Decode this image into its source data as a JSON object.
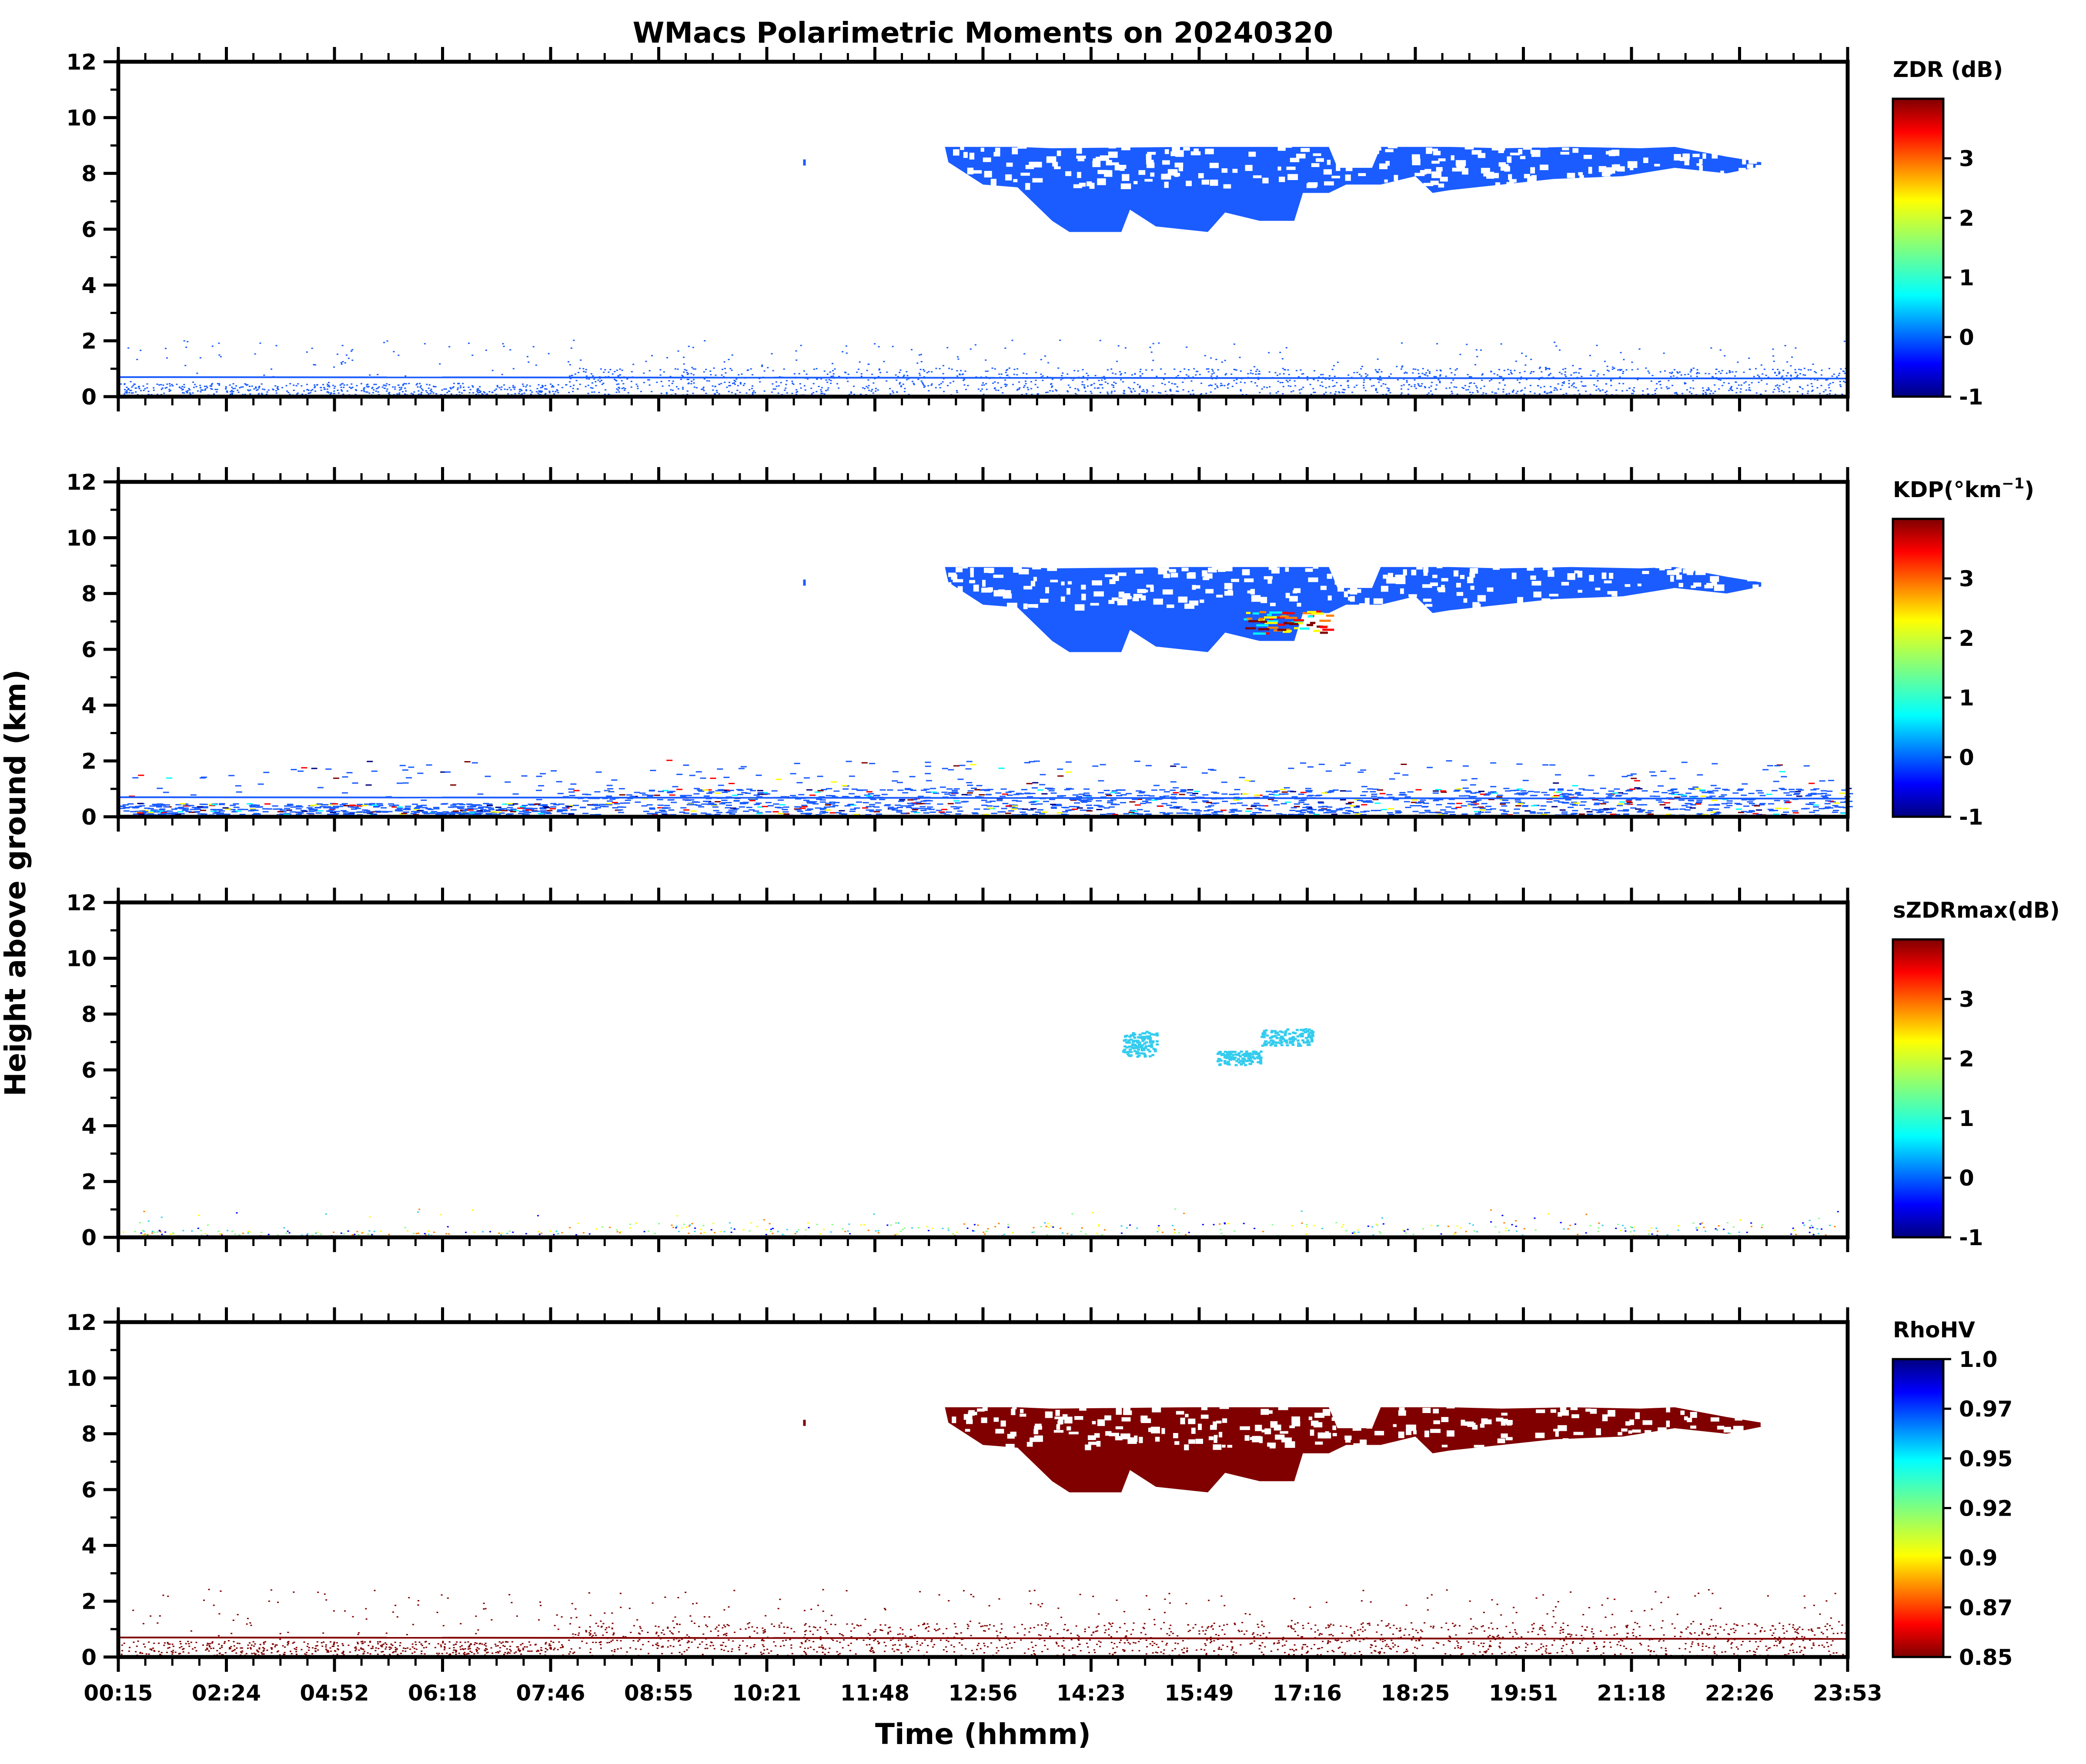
{
  "figure": {
    "title": "WMacs Polarimetric Moments on 20240320",
    "ylabel": "Height above ground (km)",
    "xlabel": "Time (hhmm)",
    "x_tick_labels": [
      "00:15",
      "02:24",
      "04:52",
      "06:18",
      "07:46",
      "08:55",
      "10:21",
      "11:48",
      "12:56",
      "14:23",
      "15:49",
      "17:16",
      "18:25",
      "19:51",
      "21:18",
      "22:26",
      "23:53"
    ],
    "y_tick_labels": [
      "0",
      "2",
      "4",
      "6",
      "8",
      "10",
      "12"
    ]
  },
  "colors": {
    "rhohv_fill": "#800000",
    "zdr_fill": "#1a5cff",
    "kdp_fill": "#1a5cff",
    "szdr_fill": "#33ccee",
    "jet": [
      "#00007f",
      "#0000ff",
      "#007fff",
      "#00ffff",
      "#7fff7f",
      "#ffff00",
      "#ff7f00",
      "#ff0000",
      "#7f0000"
    ],
    "jet_reversed": [
      "#7f0000",
      "#ff0000",
      "#ff7f00",
      "#ffff00",
      "#7fff7f",
      "#00ffff",
      "#007fff",
      "#0000ff",
      "#00007f"
    ]
  },
  "chart_data": [
    {
      "type": "heatmap",
      "variable": "ZDR",
      "colorbar_label": "ZDR (dB)",
      "colorbar_ticks": [
        "-1",
        "0",
        "1",
        "2",
        "3"
      ],
      "color_range": [
        -1,
        4
      ],
      "xlim": [
        "00:15",
        "23:53"
      ],
      "ylim": [
        0,
        12
      ],
      "dominant_value": -0.2,
      "cloud_layer_km": [
        5.8,
        9.0
      ],
      "boundary_layer_km": [
        0,
        1.0
      ]
    },
    {
      "type": "heatmap",
      "variable": "KDP",
      "colorbar_label": "KDP(°km",
      "colorbar_label_sup": "−1",
      "colorbar_label_end": ")",
      "colorbar_ticks": [
        "-1",
        "0",
        "1",
        "2",
        "3"
      ],
      "color_range": [
        -1,
        4
      ],
      "xlim": [
        "00:15",
        "23:53"
      ],
      "ylim": [
        0,
        12
      ],
      "dominant_value": -0.2,
      "cloud_layer_km": [
        5.8,
        9.0
      ],
      "boundary_layer_km": [
        0,
        1.0
      ]
    },
    {
      "type": "heatmap",
      "variable": "sZDRmax",
      "colorbar_label": "sZDRmax(dB)",
      "colorbar_ticks": [
        "-1",
        "0",
        "1",
        "2",
        "3"
      ],
      "color_range": [
        -1,
        4
      ],
      "xlim": [
        "00:15",
        "23:53"
      ],
      "ylim": [
        0,
        12
      ],
      "dominant_value": 0.5,
      "cloud_layer_km": [
        6.2,
        7.3
      ],
      "boundary_layer_km": [
        0,
        0.5
      ]
    },
    {
      "type": "heatmap",
      "variable": "RhoHV",
      "colorbar_label": "RhoHV",
      "colorbar_ticks": [
        "0.85",
        "0.87",
        "0.9",
        "0.92",
        "0.95",
        "0.97",
        "1.0"
      ],
      "color_range": [
        0.85,
        1.0
      ],
      "xlim": [
        "00:15",
        "23:53"
      ],
      "ylim": [
        0,
        12
      ],
      "dominant_value": 0.85,
      "cloud_layer_km": [
        5.8,
        9.0
      ],
      "boundary_layer_km": [
        0,
        1.2
      ]
    }
  ]
}
